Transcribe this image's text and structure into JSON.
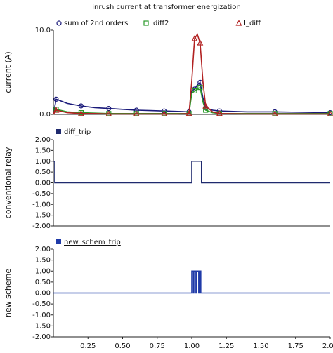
{
  "chart_data": [
    {
      "type": "line",
      "title": "inrush current at transformer energization",
      "ylabel": "current (A)",
      "xlim": [
        0,
        2
      ],
      "ylim": [
        0,
        10
      ],
      "yticks": [
        {
          "value": 0,
          "label": "0.0"
        },
        {
          "value": 10,
          "label": "10.0"
        }
      ],
      "x": [
        0,
        0.02,
        0.1,
        0.2,
        0.3,
        0.4,
        0.5,
        0.6,
        0.7,
        0.8,
        0.9,
        0.98,
        1.0,
        1.02,
        1.04,
        1.06,
        1.08,
        1.1,
        1.15,
        1.2,
        1.4,
        1.6,
        1.8,
        2.0
      ],
      "series": [
        {
          "name": "sum of 2nd orders",
          "color": "#1a1a7a",
          "marker": "circle",
          "values": [
            0,
            1.8,
            1.3,
            1.0,
            0.8,
            0.7,
            0.6,
            0.5,
            0.45,
            0.4,
            0.35,
            0.3,
            2.8,
            3.0,
            3.5,
            3.8,
            2.0,
            0.8,
            0.5,
            0.4,
            0.3,
            0.3,
            0.25,
            0.2
          ]
        },
        {
          "name": "Idiff2",
          "color": "#2a9a2a",
          "marker": "square",
          "values": [
            0,
            0.6,
            0.3,
            0.2,
            0.15,
            0.1,
            0.1,
            0.1,
            0.1,
            0.1,
            0.1,
            0.1,
            2.5,
            2.8,
            3.0,
            3.2,
            1.5,
            0.5,
            0.2,
            0.1,
            0.1,
            0.1,
            0.1,
            0.1
          ]
        },
        {
          "name": "I_diff",
          "color": "#b22222",
          "marker": "triangle",
          "values": [
            0,
            0.5,
            0.2,
            0.1,
            0.1,
            0.05,
            0.05,
            0.05,
            0.05,
            0.05,
            0.05,
            0.1,
            4,
            9,
            9.5,
            8.5,
            4,
            1,
            0.3,
            0.1,
            0.05,
            0.05,
            0.05,
            0.05
          ]
        }
      ]
    },
    {
      "type": "line",
      "ylabel": "conventional relay",
      "xlim": [
        0,
        2
      ],
      "ylim": [
        -2,
        2
      ],
      "yticks": [
        {
          "value": 2,
          "label": "2.00"
        },
        {
          "value": 1.5,
          "label": "1.50"
        },
        {
          "value": 1,
          "label": "1.00"
        },
        {
          "value": 0.5,
          "label": "0.50"
        },
        {
          "value": 0,
          "label": "0.00"
        },
        {
          "value": -0.5,
          "label": "-0.50"
        },
        {
          "value": -1,
          "label": "-1.00"
        },
        {
          "value": -1.5,
          "label": "-1.50"
        },
        {
          "value": -2,
          "label": "-2.00"
        }
      ],
      "x": [
        0,
        0.01,
        0.01,
        1.0,
        1.0,
        1.07,
        1.07,
        2.0
      ],
      "series": [
        {
          "name": "diff_trip",
          "color": "#1f2a6e",
          "values": [
            1,
            1,
            0,
            0,
            1,
            1,
            0,
            0
          ]
        }
      ]
    },
    {
      "type": "line",
      "ylabel": "new scheme",
      "xlim": [
        0,
        2
      ],
      "ylim": [
        -2,
        2
      ],
      "yticks": [
        {
          "value": 2,
          "label": "2.00"
        },
        {
          "value": 1.5,
          "label": "1.50"
        },
        {
          "value": 1,
          "label": "1.00"
        },
        {
          "value": 0.5,
          "label": "0.50"
        },
        {
          "value": 0,
          "label": "0.00"
        },
        {
          "value": -0.5,
          "label": "-0.50"
        },
        {
          "value": -1,
          "label": "-1.00"
        },
        {
          "value": -1.5,
          "label": "-1.50"
        },
        {
          "value": -2,
          "label": "-2.00"
        }
      ],
      "xticks": [
        0.25,
        {
          "value": 0.5,
          "label": "0.50"
        },
        0.75,
        {
          "value": 1,
          "label": "1.00"
        },
        1.25,
        {
          "value": 1.5,
          "label": "1.50"
        },
        1.75,
        {
          "value": 2,
          "label": "2.00"
        }
      ],
      "x": [
        0,
        1.0,
        1.0,
        1.01,
        1.01,
        1.015,
        1.015,
        1.03,
        1.03,
        1.035,
        1.035,
        1.05,
        1.05,
        1.055,
        1.055,
        1.065,
        1.065,
        2.0
      ],
      "series": [
        {
          "name": "new_schem_trip",
          "color": "#1f3aa8",
          "values": [
            0,
            0,
            1,
            1,
            0,
            0,
            1,
            1,
            0,
            0,
            1,
            1,
            0,
            0,
            1,
            1,
            0,
            0
          ]
        }
      ]
    }
  ]
}
